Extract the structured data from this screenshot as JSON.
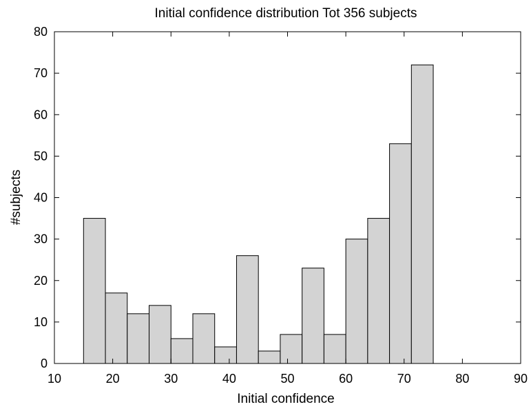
{
  "chart_data": {
    "type": "bar",
    "title": "Initial confidence distribution Tot 356 subjects",
    "xlabel": "Initial confidence",
    "ylabel": "#subjects",
    "xlim": [
      10,
      90
    ],
    "ylim": [
      0,
      80
    ],
    "xticks": [
      10,
      20,
      30,
      40,
      50,
      60,
      70,
      80,
      90
    ],
    "yticks": [
      0,
      10,
      20,
      30,
      40,
      50,
      60,
      70,
      80
    ],
    "bin_width": 3.75,
    "bin_start": 15,
    "values": [
      35,
      17,
      12,
      14,
      6,
      12,
      4,
      26,
      3,
      7,
      23,
      7,
      30,
      35,
      53,
      72
    ],
    "grid": false,
    "bar_color": "#d3d3d3",
    "edge_color": "#000000"
  }
}
